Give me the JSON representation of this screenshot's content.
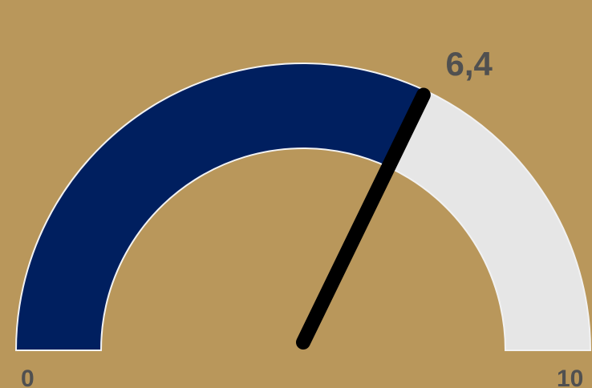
{
  "chart_data": {
    "type": "gauge",
    "title": "",
    "value": 6.4,
    "value_label": "6,4",
    "min": 0,
    "max": 10,
    "min_label": "0",
    "max_label": "10",
    "colors": {
      "background": "#B9975B",
      "filled": "#001F5F",
      "remaining": "#E6E6E6",
      "needle": "#000000",
      "labels": "#505050"
    }
  }
}
